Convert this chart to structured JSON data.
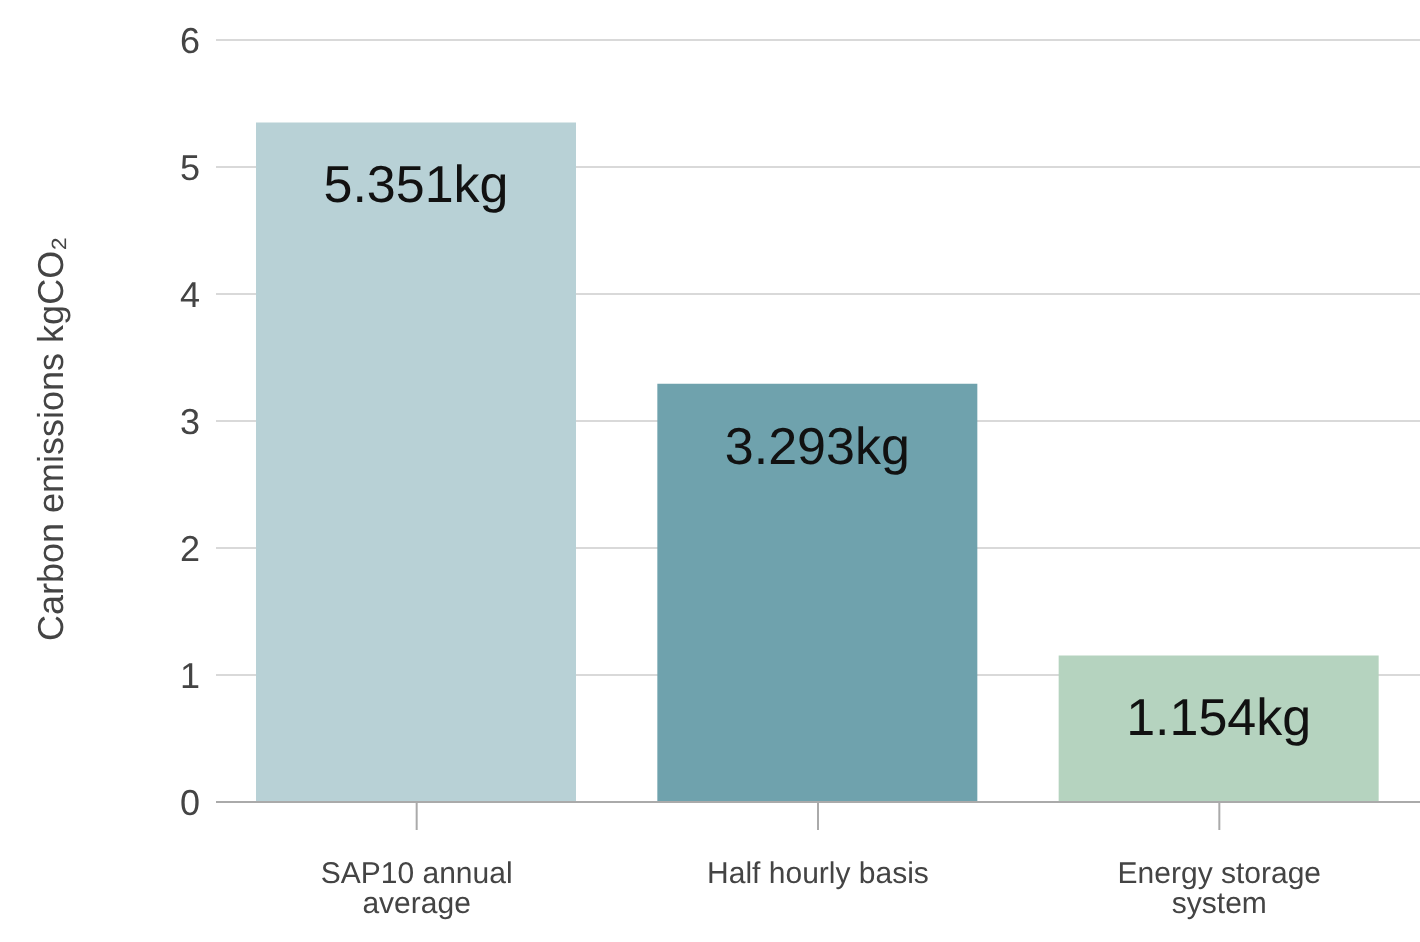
{
  "chart_data": {
    "type": "bar",
    "ylabel": "Carbon emissions kgCO₂",
    "categories": [
      "SAP10 annual average",
      "Half hourly basis",
      "Energy storage system"
    ],
    "values": [
      5.351,
      3.293,
      1.154
    ],
    "colors": [
      "#b8d1d6",
      "#6fa2ad",
      "#b5d3bf"
    ],
    "value_labels": [
      "5.351kg",
      "3.293kg",
      "1.154kg"
    ],
    "ylim": [
      0,
      6
    ],
    "yticks": [
      0,
      1,
      2,
      3,
      4,
      5,
      6
    ],
    "grid": "y"
  }
}
